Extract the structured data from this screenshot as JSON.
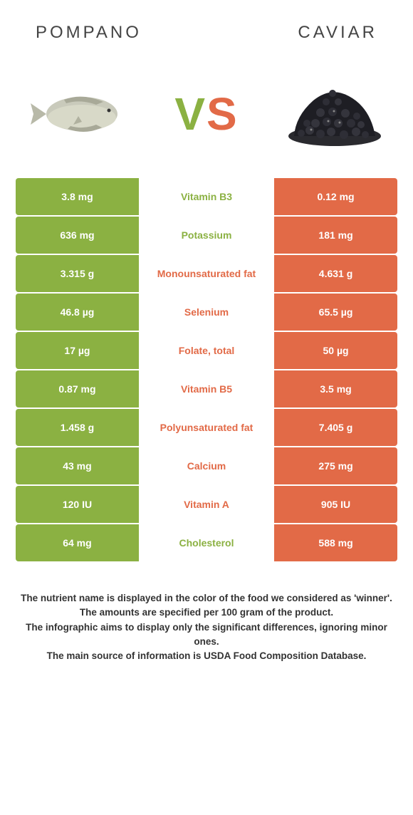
{
  "colors": {
    "green": "#8bb142",
    "orange": "#e26a47",
    "text": "#444444"
  },
  "header": {
    "left": "pompano",
    "right": "caviar"
  },
  "vs": {
    "v": "V",
    "s": "S"
  },
  "rows": [
    {
      "left": "3.8 mg",
      "mid": "Vitamin B3",
      "right": "0.12 mg",
      "winner": "left"
    },
    {
      "left": "636 mg",
      "mid": "Potassium",
      "right": "181 mg",
      "winner": "left"
    },
    {
      "left": "3.315 g",
      "mid": "Monounsaturated fat",
      "right": "4.631 g",
      "winner": "right"
    },
    {
      "left": "46.8 µg",
      "mid": "Selenium",
      "right": "65.5 µg",
      "winner": "right"
    },
    {
      "left": "17 µg",
      "mid": "Folate, total",
      "right": "50 µg",
      "winner": "right"
    },
    {
      "left": "0.87 mg",
      "mid": "Vitamin B5",
      "right": "3.5 mg",
      "winner": "right"
    },
    {
      "left": "1.458 g",
      "mid": "Polyunsaturated fat",
      "right": "7.405 g",
      "winner": "right"
    },
    {
      "left": "43 mg",
      "mid": "Calcium",
      "right": "275 mg",
      "winner": "right"
    },
    {
      "left": "120 IU",
      "mid": "Vitamin A",
      "right": "905 IU",
      "winner": "right"
    },
    {
      "left": "64 mg",
      "mid": "Cholesterol",
      "right": "588 mg",
      "winner": "left"
    }
  ],
  "footer": {
    "l1": "The nutrient name is displayed in the color of the food we considered as 'winner'.",
    "l2": "The amounts are specified per 100 gram of the product.",
    "l3": "The infographic aims to display only the significant differences, ignoring minor ones.",
    "l4": "The main source of information is USDA Food Composition Database."
  }
}
